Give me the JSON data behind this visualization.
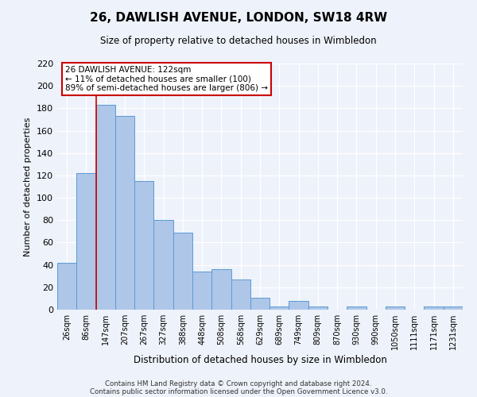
{
  "title": "26, DAWLISH AVENUE, LONDON, SW18 4RW",
  "subtitle": "Size of property relative to detached houses in Wimbledon",
  "xlabel": "Distribution of detached houses by size in Wimbledon",
  "ylabel": "Number of detached properties",
  "footer_line1": "Contains HM Land Registry data © Crown copyright and database right 2024.",
  "footer_line2": "Contains public sector information licensed under the Open Government Licence v3.0.",
  "bin_labels": [
    "26sqm",
    "86sqm",
    "147sqm",
    "207sqm",
    "267sqm",
    "327sqm",
    "388sqm",
    "448sqm",
    "508sqm",
    "568sqm",
    "629sqm",
    "689sqm",
    "749sqm",
    "809sqm",
    "870sqm",
    "930sqm",
    "990sqm",
    "1050sqm",
    "1111sqm",
    "1171sqm",
    "1231sqm"
  ],
  "bar_heights": [
    42,
    122,
    183,
    173,
    115,
    80,
    69,
    34,
    36,
    27,
    11,
    3,
    8,
    3,
    0,
    3,
    0,
    3,
    0,
    3,
    3
  ],
  "bar_color": "#aec6e8",
  "bar_edge_color": "#5b9bd5",
  "ylim": [
    0,
    220
  ],
  "yticks": [
    0,
    20,
    40,
    60,
    80,
    100,
    120,
    140,
    160,
    180,
    200,
    220
  ],
  "property_label": "26 DAWLISH AVENUE: 122sqm",
  "annotation_line1": "← 11% of detached houses are smaller (100)",
  "annotation_line2": "89% of semi-detached houses are larger (806) →",
  "red_line_bin_index": 1,
  "background_color": "#eef2fa"
}
